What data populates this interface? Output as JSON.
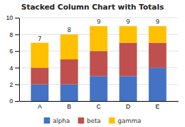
{
  "chart_data": {
    "type": "bar",
    "stacked": true,
    "title": "Stacked Column Chart with Totals",
    "categories": [
      "A",
      "B",
      "C",
      "D",
      "E"
    ],
    "series": [
      {
        "name": "alpha",
        "color": "#4472C4",
        "values": [
          2,
          2,
          3,
          3,
          4
        ]
      },
      {
        "name": "beta",
        "color": "#C0504D",
        "values": [
          2,
          3,
          3,
          4,
          3
        ]
      },
      {
        "name": "gamma",
        "color": "#FFC000",
        "values": [
          3,
          3,
          3,
          2,
          2
        ]
      }
    ],
    "totals": [
      7,
      8,
      9,
      9,
      9
    ],
    "ylim": [
      0,
      10
    ],
    "yticks": [
      0,
      2,
      4,
      6,
      8,
      10
    ],
    "grid": true,
    "legend": "bottom"
  }
}
